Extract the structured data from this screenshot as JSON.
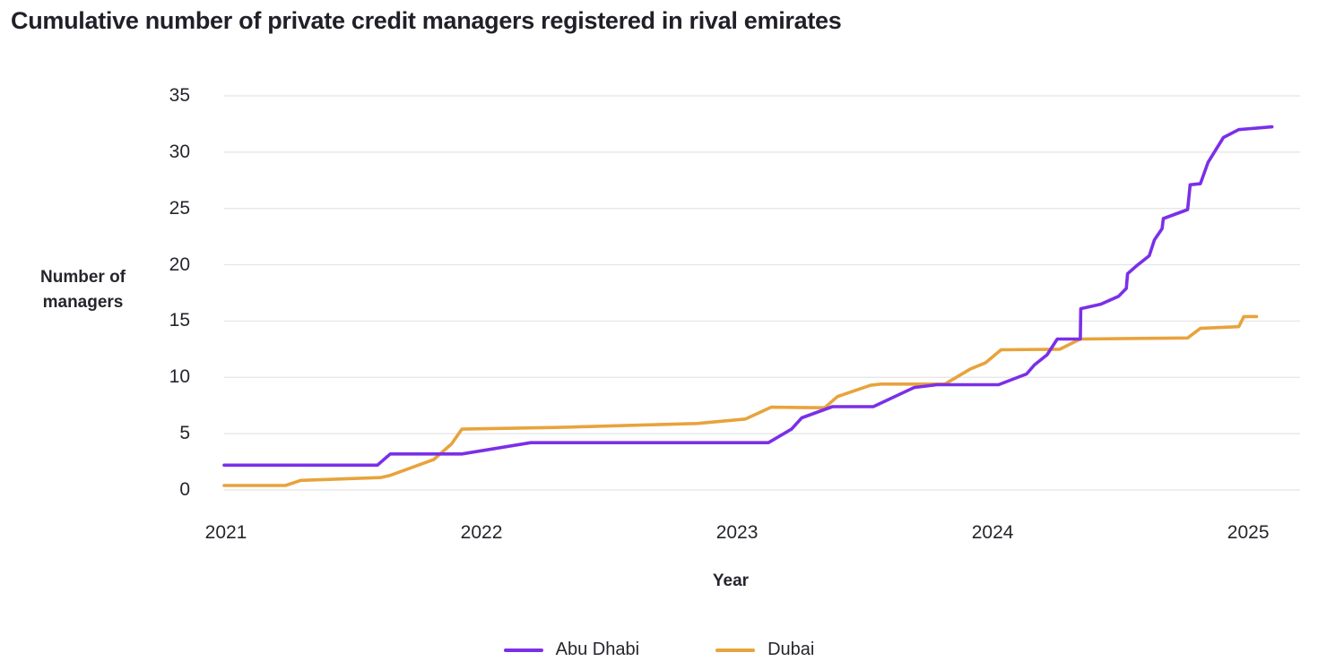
{
  "header": {
    "title": "Cumulative number of private credit managers registered in rival emirates"
  },
  "chart_data": {
    "type": "line",
    "title": "Cumulative number of private credit managers registered in rival emirates",
    "xlabel": "Year",
    "ylabel": "Number of managers",
    "ylabel_lines": [
      "Number of",
      "managers"
    ],
    "x_ticks": [
      2021,
      2022,
      2023,
      2024,
      2025
    ],
    "y_ticks": [
      0,
      5,
      10,
      15,
      20,
      25,
      30,
      35
    ],
    "xlim": [
      2021,
      2025.21
    ],
    "ylim": [
      0,
      35
    ],
    "grid": "horizontal",
    "grid_color": "#e4e4e4",
    "text_color": "#26252d",
    "background": "#ffffff",
    "legend_position": "bottom",
    "series": [
      {
        "name": "Dubai",
        "color": "#e8a33c",
        "points": [
          [
            2021.0,
            0.4
          ],
          [
            2021.24,
            0.4
          ],
          [
            2021.3,
            0.85
          ],
          [
            2021.61,
            1.1
          ],
          [
            2021.65,
            1.3
          ],
          [
            2021.82,
            2.7
          ],
          [
            2021.89,
            4.1
          ],
          [
            2021.93,
            5.4
          ],
          [
            2022.3,
            5.55
          ],
          [
            2022.85,
            5.9
          ],
          [
            2023.04,
            6.3
          ],
          [
            2023.14,
            7.35
          ],
          [
            2023.35,
            7.3
          ],
          [
            2023.4,
            8.3
          ],
          [
            2023.53,
            9.3
          ],
          [
            2023.57,
            9.4
          ],
          [
            2023.82,
            9.4
          ],
          [
            2023.92,
            10.75
          ],
          [
            2023.98,
            11.3
          ],
          [
            2024.04,
            12.45
          ],
          [
            2024.27,
            12.5
          ],
          [
            2024.35,
            13.4
          ],
          [
            2024.77,
            13.5
          ],
          [
            2024.82,
            14.35
          ],
          [
            2024.97,
            14.5
          ],
          [
            2024.99,
            15.4
          ],
          [
            2025.04,
            15.4
          ]
        ]
      },
      {
        "name": "Abu Dhabi",
        "color": "#7b2fe8",
        "points": [
          [
            2021.0,
            2.2
          ],
          [
            2021.6,
            2.2
          ],
          [
            2021.65,
            3.2
          ],
          [
            2021.93,
            3.2
          ],
          [
            2022.2,
            4.2
          ],
          [
            2023.13,
            4.2
          ],
          [
            2023.22,
            5.4
          ],
          [
            2023.26,
            6.4
          ],
          [
            2023.38,
            7.4
          ],
          [
            2023.54,
            7.4
          ],
          [
            2023.7,
            9.1
          ],
          [
            2023.79,
            9.35
          ],
          [
            2024.03,
            9.35
          ],
          [
            2024.14,
            10.3
          ],
          [
            2024.17,
            11.1
          ],
          [
            2024.22,
            12.0
          ],
          [
            2024.26,
            13.4
          ],
          [
            2024.35,
            13.4
          ],
          [
            2024.352,
            16.1
          ],
          [
            2024.43,
            16.5
          ],
          [
            2024.5,
            17.2
          ],
          [
            2024.53,
            17.9
          ],
          [
            2024.535,
            19.2
          ],
          [
            2024.57,
            19.9
          ],
          [
            2024.62,
            20.8
          ],
          [
            2024.64,
            22.2
          ],
          [
            2024.67,
            23.2
          ],
          [
            2024.675,
            24.1
          ],
          [
            2024.77,
            24.9
          ],
          [
            2024.78,
            27.1
          ],
          [
            2024.82,
            27.2
          ],
          [
            2024.85,
            29.1
          ],
          [
            2024.91,
            31.3
          ],
          [
            2024.97,
            32.0
          ],
          [
            2025.02,
            32.1
          ],
          [
            2025.1,
            32.25
          ]
        ]
      }
    ],
    "legend": {
      "items": [
        "Abu Dhabi",
        "Dubai"
      ]
    }
  }
}
